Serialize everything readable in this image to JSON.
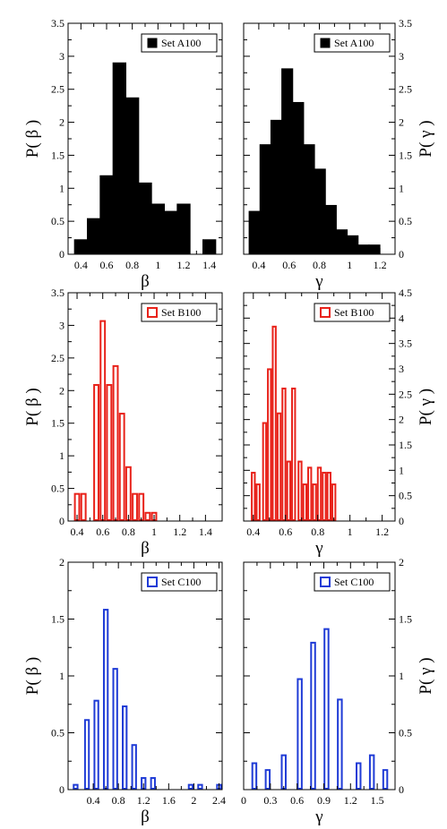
{
  "chart_data": [
    {
      "type": "bar",
      "panel": "top-left",
      "color": "#000000",
      "filled": true,
      "xlabel": "β",
      "ylabel": "P( β )",
      "legend": "Set A100",
      "legend_position": "top-right",
      "xlim": [
        0.3,
        1.5
      ],
      "ylim": [
        0,
        3.5
      ],
      "xticks": [
        {
          "v": 0.4,
          "t": "0.4"
        },
        {
          "v": 0.6,
          "t": "0.6"
        },
        {
          "v": 0.8,
          "t": "0.8"
        },
        {
          "v": 1.0,
          "t": "1"
        },
        {
          "v": 1.2,
          "t": "1.2"
        },
        {
          "v": 1.4,
          "t": "1.4"
        }
      ],
      "yticks": [
        {
          "v": 0,
          "t": "0"
        },
        {
          "v": 0.5,
          "t": "0.5"
        },
        {
          "v": 1,
          "t": "1"
        },
        {
          "v": 1.5,
          "t": "1.5"
        },
        {
          "v": 2,
          "t": "2"
        },
        {
          "v": 2.5,
          "t": "2.5"
        },
        {
          "v": 3,
          "t": "3"
        },
        {
          "v": 3.5,
          "t": "3.5"
        }
      ],
      "bin_width": 0.1,
      "x": [
        0.4,
        0.5,
        0.6,
        0.7,
        0.8,
        0.9,
        1.0,
        1.1,
        1.2,
        1.3,
        1.4
      ],
      "values": [
        0.22,
        0.54,
        1.19,
        2.9,
        2.37,
        1.08,
        0.76,
        0.65,
        0.76,
        0.0,
        0.22
      ]
    },
    {
      "type": "bar",
      "panel": "top-right",
      "color": "#000000",
      "filled": true,
      "xlabel": "γ",
      "ylabel": "P( γ )",
      "legend": "Set A100",
      "legend_position": "top-right",
      "xlim": [
        0.3,
        1.3
      ],
      "ylim": [
        0,
        3.5
      ],
      "xticks": [
        {
          "v": 0.4,
          "t": "0.4"
        },
        {
          "v": 0.6,
          "t": "0.6"
        },
        {
          "v": 0.8,
          "t": "0.8"
        },
        {
          "v": 1.0,
          "t": "1"
        },
        {
          "v": 1.2,
          "t": "1.2"
        }
      ],
      "yticks": [
        {
          "v": 0,
          "t": "0"
        },
        {
          "v": 0.5,
          "t": "0.5"
        },
        {
          "v": 1,
          "t": "1"
        },
        {
          "v": 1.5,
          "t": "1.5"
        },
        {
          "v": 2,
          "t": "2"
        },
        {
          "v": 2.5,
          "t": "2.5"
        },
        {
          "v": 3,
          "t": "3"
        },
        {
          "v": 3.5,
          "t": "3.5"
        }
      ],
      "bin_width": 0.072,
      "x": [
        0.372,
        0.444,
        0.516,
        0.588,
        0.66,
        0.732,
        0.804,
        0.876,
        0.948,
        1.02,
        1.092,
        1.164
      ],
      "values": [
        0.65,
        1.66,
        2.03,
        2.81,
        2.3,
        1.66,
        1.29,
        0.74,
        0.37,
        0.28,
        0.14,
        0.14
      ]
    },
    {
      "type": "bar",
      "panel": "middle-left",
      "color": "#e8221a",
      "filled": false,
      "xlabel": "β",
      "ylabel": "P( β )",
      "legend": "Set B100",
      "legend_position": "top-right",
      "xlim": [
        0.33,
        1.53
      ],
      "ylim": [
        0,
        3.5
      ],
      "xticks": [
        {
          "v": 0.4,
          "t": "0.4"
        },
        {
          "v": 0.6,
          "t": "0.6"
        },
        {
          "v": 0.8,
          "t": "0.8"
        },
        {
          "v": 1.0,
          "t": "1"
        },
        {
          "v": 1.2,
          "t": "1.2"
        },
        {
          "v": 1.4,
          "t": "1.4"
        }
      ],
      "yticks": [
        {
          "v": 0,
          "t": "0"
        },
        {
          "v": 0.5,
          "t": "0.5"
        },
        {
          "v": 1,
          "t": "1"
        },
        {
          "v": 1.5,
          "t": "1.5"
        },
        {
          "v": 2,
          "t": "2"
        },
        {
          "v": 2.5,
          "t": "2.5"
        },
        {
          "v": 3,
          "t": "3"
        },
        {
          "v": 3.5,
          "t": "3.5"
        }
      ],
      "bin_width": 0.048,
      "x": [
        0.4,
        0.45,
        0.55,
        0.6,
        0.65,
        0.7,
        0.75,
        0.8,
        0.85,
        0.9,
        0.95,
        1.0,
        1.05
      ],
      "values": [
        0.43,
        0.43,
        2.1,
        3.08,
        2.1,
        2.39,
        1.66,
        0.84,
        0.43,
        0.43,
        0.14,
        0.14,
        0.0
      ]
    },
    {
      "type": "bar",
      "panel": "middle-right",
      "color": "#e8221a",
      "filled": false,
      "xlabel": "γ",
      "ylabel": "P( γ )",
      "legend": "Set B100",
      "legend_position": "top-right",
      "xlim": [
        0.34,
        1.28
      ],
      "ylim": [
        0,
        4.5
      ],
      "xticks": [
        {
          "v": 0.4,
          "t": "0.4"
        },
        {
          "v": 0.6,
          "t": "0.6"
        },
        {
          "v": 0.8,
          "t": "0.8"
        },
        {
          "v": 1.0,
          "t": "1"
        },
        {
          "v": 1.2,
          "t": "1.2"
        }
      ],
      "yticks": [
        {
          "v": 0,
          "t": "0"
        },
        {
          "v": 0.5,
          "t": "0.5"
        },
        {
          "v": 1,
          "t": "1"
        },
        {
          "v": 1.5,
          "t": "1.5"
        },
        {
          "v": 2,
          "t": "2"
        },
        {
          "v": 2.5,
          "t": "2.5"
        },
        {
          "v": 3,
          "t": "3"
        },
        {
          "v": 3.5,
          "t": "3.5"
        },
        {
          "v": 4,
          "t": "4"
        },
        {
          "v": 4.5,
          "t": "4.5"
        }
      ],
      "bin_width": 0.03,
      "x": [
        0.4,
        0.43,
        0.47,
        0.5,
        0.53,
        0.56,
        0.59,
        0.62,
        0.65,
        0.69,
        0.72,
        0.75,
        0.78,
        0.81,
        0.84,
        0.87,
        0.9
      ],
      "values": [
        0.97,
        0.74,
        1.95,
        3.01,
        3.85,
        2.14,
        2.63,
        1.19,
        2.63,
        1.19,
        0.74,
        1.07,
        0.74,
        1.07,
        0.97,
        0.97,
        0.74
      ]
    },
    {
      "type": "bar",
      "panel": "bottom-left",
      "color": "#1f3bd6",
      "filled": false,
      "xlabel": "β",
      "ylabel": "P( β )",
      "legend": "Set C100",
      "legend_position": "top-right",
      "xlim": [
        0,
        2.45
      ],
      "ylim": [
        0,
        2
      ],
      "xticks": [
        {
          "v": 0.4,
          "t": "0.4"
        },
        {
          "v": 0.8,
          "t": "0.8"
        },
        {
          "v": 1.2,
          "t": "1.2"
        },
        {
          "v": 1.6,
          "t": "1.6"
        },
        {
          "v": 2.0,
          "t": "2"
        },
        {
          "v": 2.4,
          "t": "2.4"
        }
      ],
      "yticks": [
        {
          "v": 0,
          "t": "0"
        },
        {
          "v": 0.5,
          "t": "0.5"
        },
        {
          "v": 1,
          "t": "1"
        },
        {
          "v": 1.5,
          "t": "1.5"
        },
        {
          "v": 2,
          "t": "2"
        }
      ],
      "bin_width": 0.09,
      "x": [
        0.12,
        0.3,
        0.45,
        0.6,
        0.75,
        0.9,
        1.05,
        1.2,
        1.35,
        1.5,
        1.95,
        2.1,
        2.4
      ],
      "values": [
        0.05,
        0.62,
        0.79,
        1.59,
        1.07,
        0.74,
        0.4,
        0.11,
        0.11,
        0.0,
        0.05,
        0.05,
        0.05
      ]
    },
    {
      "type": "bar",
      "panel": "bottom-right",
      "color": "#1f3bd6",
      "filled": false,
      "xlabel": "γ",
      "ylabel": "P( γ )",
      "legend": "Set C100",
      "legend_position": "top-right",
      "xlim": [
        0,
        1.7
      ],
      "ylim": [
        0,
        2
      ],
      "xticks": [
        {
          "v": 0,
          "t": "0"
        },
        {
          "v": 0.3,
          "t": "0.3"
        },
        {
          "v": 0.6,
          "t": "0.6"
        },
        {
          "v": 0.9,
          "t": "0.9"
        },
        {
          "v": 1.2,
          "t": "1.2"
        },
        {
          "v": 1.5,
          "t": "1.5"
        }
      ],
      "yticks": [
        {
          "v": 0,
          "t": "0"
        },
        {
          "v": 0.5,
          "t": "0.5"
        },
        {
          "v": 1,
          "t": "1"
        },
        {
          "v": 1.5,
          "t": "1.5"
        },
        {
          "v": 2,
          "t": "2"
        }
      ],
      "bin_width": 0.065,
      "x": [
        0.12,
        0.27,
        0.45,
        0.63,
        0.78,
        0.93,
        1.08,
        1.29,
        1.44,
        1.59
      ],
      "values": [
        0.24,
        0.18,
        0.31,
        0.98,
        1.3,
        1.42,
        0.8,
        0.24,
        0.31,
        0.18
      ]
    }
  ]
}
